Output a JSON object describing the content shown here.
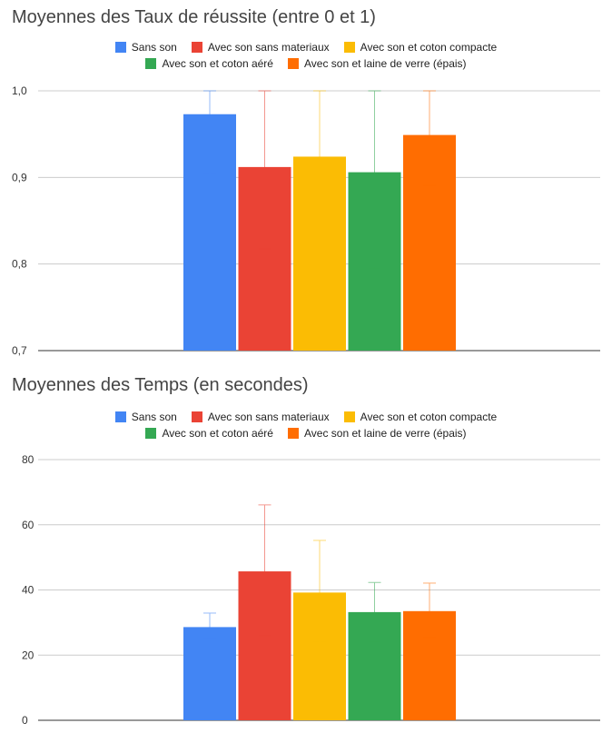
{
  "chart_data": [
    {
      "type": "bar",
      "title": "Moyennes des Taux de réussite (entre 0 et 1)",
      "legend_position": "top",
      "ylim": [
        0.7,
        1.0
      ],
      "yticks": [
        0.7,
        0.8,
        0.9,
        1.0
      ],
      "ytick_labels": [
        "0,7",
        "0,8",
        "0,9",
        "1,0"
      ],
      "grid": true,
      "series": [
        {
          "name": "Sans son",
          "value": 0.973,
          "error_low": 0.905,
          "error_high": 1.0,
          "color": "#4285F4"
        },
        {
          "name": "Avec son sans materiaux",
          "value": 0.912,
          "error_low": 0.817,
          "error_high": 1.0,
          "color": "#EA4335"
        },
        {
          "name": "Avec son et coton compacte",
          "value": 0.924,
          "error_low": 0.843,
          "error_high": 1.0,
          "color": "#FBBC04"
        },
        {
          "name": "Avec son et coton aéré",
          "value": 0.906,
          "error_low": 0.795,
          "error_high": 1.0,
          "color": "#34A853"
        },
        {
          "name": "Avec son et laine de verre (épais)",
          "value": 0.949,
          "error_low": 0.891,
          "error_high": 1.0,
          "color": "#FF6D01"
        }
      ]
    },
    {
      "type": "bar",
      "title": "Moyennes des Temps (en secondes)",
      "legend_position": "top",
      "ylim": [
        0,
        80
      ],
      "yticks": [
        0,
        20,
        40,
        60,
        80
      ],
      "ytick_labels": [
        "0",
        "20",
        "40",
        "60",
        "80"
      ],
      "grid": true,
      "series": [
        {
          "name": "Sans son",
          "value": 28.6,
          "error_low": 25.3,
          "error_high": 32.9,
          "color": "#4285F4"
        },
        {
          "name": "Avec son sans materiaux",
          "value": 45.7,
          "error_low": 25.8,
          "error_high": 66.1,
          "color": "#EA4335"
        },
        {
          "name": "Avec son et coton compacte",
          "value": 39.2,
          "error_low": 23.9,
          "error_high": 55.2,
          "color": "#FBBC04"
        },
        {
          "name": "Avec son et coton aéré",
          "value": 33.2,
          "error_low": 24.1,
          "error_high": 42.3,
          "color": "#34A853"
        },
        {
          "name": "Avec son et laine de verre (épais)",
          "value": 33.5,
          "error_low": 25.4,
          "error_high": 42.1,
          "color": "#FF6D01"
        }
      ]
    }
  ]
}
